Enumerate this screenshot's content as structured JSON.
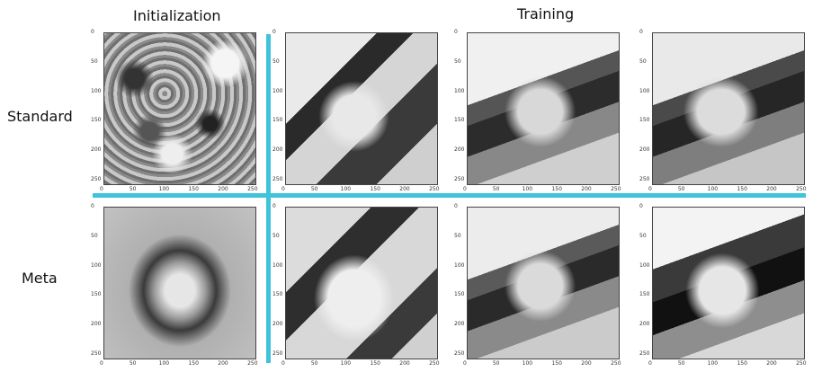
{
  "headers": {
    "initialization": "Initialization",
    "training": "Training"
  },
  "rows": [
    {
      "label": "Standard"
    },
    {
      "label": "Meta"
    }
  ],
  "axis": {
    "x_ticks": [
      "0",
      "50",
      "100",
      "150",
      "200",
      "250"
    ],
    "y_ticks": [
      "0",
      "50",
      "100",
      "150",
      "200",
      "250"
    ]
  },
  "colors": {
    "separator": "#3fc3db"
  }
}
